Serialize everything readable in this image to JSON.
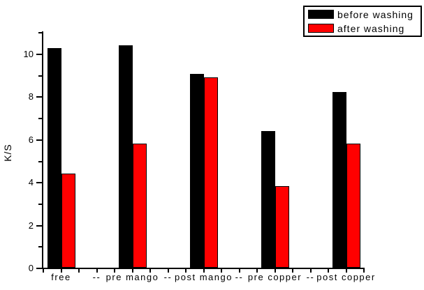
{
  "chart_data": {
    "type": "bar",
    "title": "",
    "xlabel": "",
    "ylabel": "K/S",
    "categories": [
      "free",
      "pre mango",
      "post mango",
      "pre copper",
      "post copper"
    ],
    "x_axis_labels": [
      "free",
      "--",
      "pre mango",
      "--",
      "post mango",
      "--",
      "pre copper",
      "--",
      "post copper"
    ],
    "series": [
      {
        "name": "before washing",
        "color": "#000000",
        "values": [
          10.25,
          10.4,
          9.05,
          6.4,
          8.2
        ]
      },
      {
        "name": "after washing",
        "color": "#ff0000",
        "values": [
          4.4,
          5.8,
          8.9,
          3.8,
          5.8
        ]
      }
    ],
    "ylim": [
      0,
      11.1
    ],
    "y_major_ticks": [
      0,
      2,
      4,
      6,
      8,
      10
    ],
    "y_minor_ticks": [
      1,
      3,
      5,
      7,
      9,
      11
    ],
    "grid": false,
    "legend_position": "top-right"
  }
}
